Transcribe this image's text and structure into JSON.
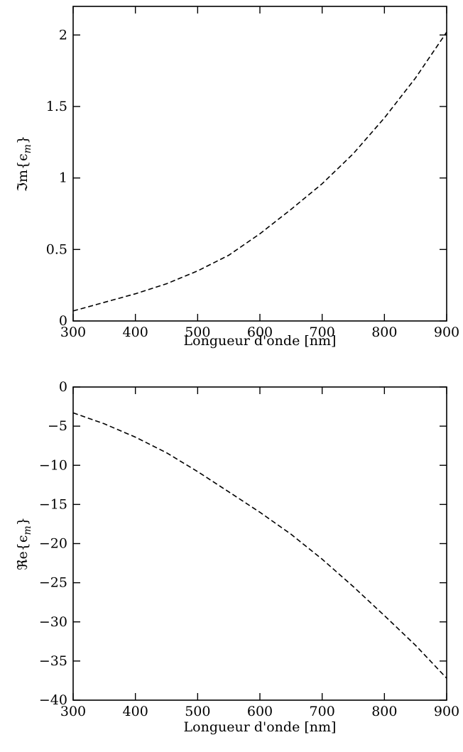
{
  "chart_data": [
    {
      "type": "line",
      "xlabel": "Longueur d'onde [nm]",
      "ylabel_prefix": "ℑm{ϵ",
      "ylabel_sub": "m",
      "ylabel_suffix": "}",
      "xlim": [
        300,
        900
      ],
      "ylim": [
        0,
        2.2
      ],
      "xticks": [
        300,
        400,
        500,
        600,
        700,
        800,
        900
      ],
      "xtick_labels": [
        "300",
        "400",
        "500",
        "600",
        "700",
        "800",
        "900"
      ],
      "yticks": [
        0,
        0.5,
        1,
        1.5,
        2
      ],
      "ytick_labels": [
        "0",
        "0.5",
        "1",
        "1.5",
        "2"
      ],
      "grid": false,
      "line_style": "dashed",
      "color": "#000000",
      "series": [
        {
          "x": [
            300,
            350,
            400,
            450,
            500,
            550,
            600,
            650,
            700,
            750,
            800,
            850,
            900
          ],
          "y": [
            0.07,
            0.13,
            0.19,
            0.26,
            0.35,
            0.46,
            0.61,
            0.78,
            0.96,
            1.17,
            1.42,
            1.7,
            2.02
          ]
        }
      ]
    },
    {
      "type": "line",
      "xlabel": "Longueur d'onde [nm]",
      "ylabel_prefix": "ℜe{ϵ",
      "ylabel_sub": "m",
      "ylabel_suffix": "}",
      "xlim": [
        300,
        900
      ],
      "ylim": [
        -40,
        0
      ],
      "xticks": [
        300,
        400,
        500,
        600,
        700,
        800,
        900
      ],
      "xtick_labels": [
        "300",
        "400",
        "500",
        "600",
        "700",
        "800",
        "900"
      ],
      "yticks": [
        0,
        -5,
        -10,
        -15,
        -20,
        -25,
        -30,
        -35,
        -40
      ],
      "ytick_labels": [
        "0",
        "−5",
        "−10",
        "−15",
        "−20",
        "−25",
        "−30",
        "−35",
        "−40"
      ],
      "grid": false,
      "line_style": "dashed",
      "color": "#000000",
      "series": [
        {
          "x": [
            300,
            350,
            400,
            450,
            500,
            550,
            600,
            650,
            700,
            750,
            800,
            850,
            900
          ],
          "y": [
            -3.3,
            -4.7,
            -6.4,
            -8.4,
            -10.8,
            -13.4,
            -16.0,
            -18.8,
            -22.0,
            -25.5,
            -29.2,
            -33.0,
            -37.2
          ]
        }
      ]
    }
  ]
}
